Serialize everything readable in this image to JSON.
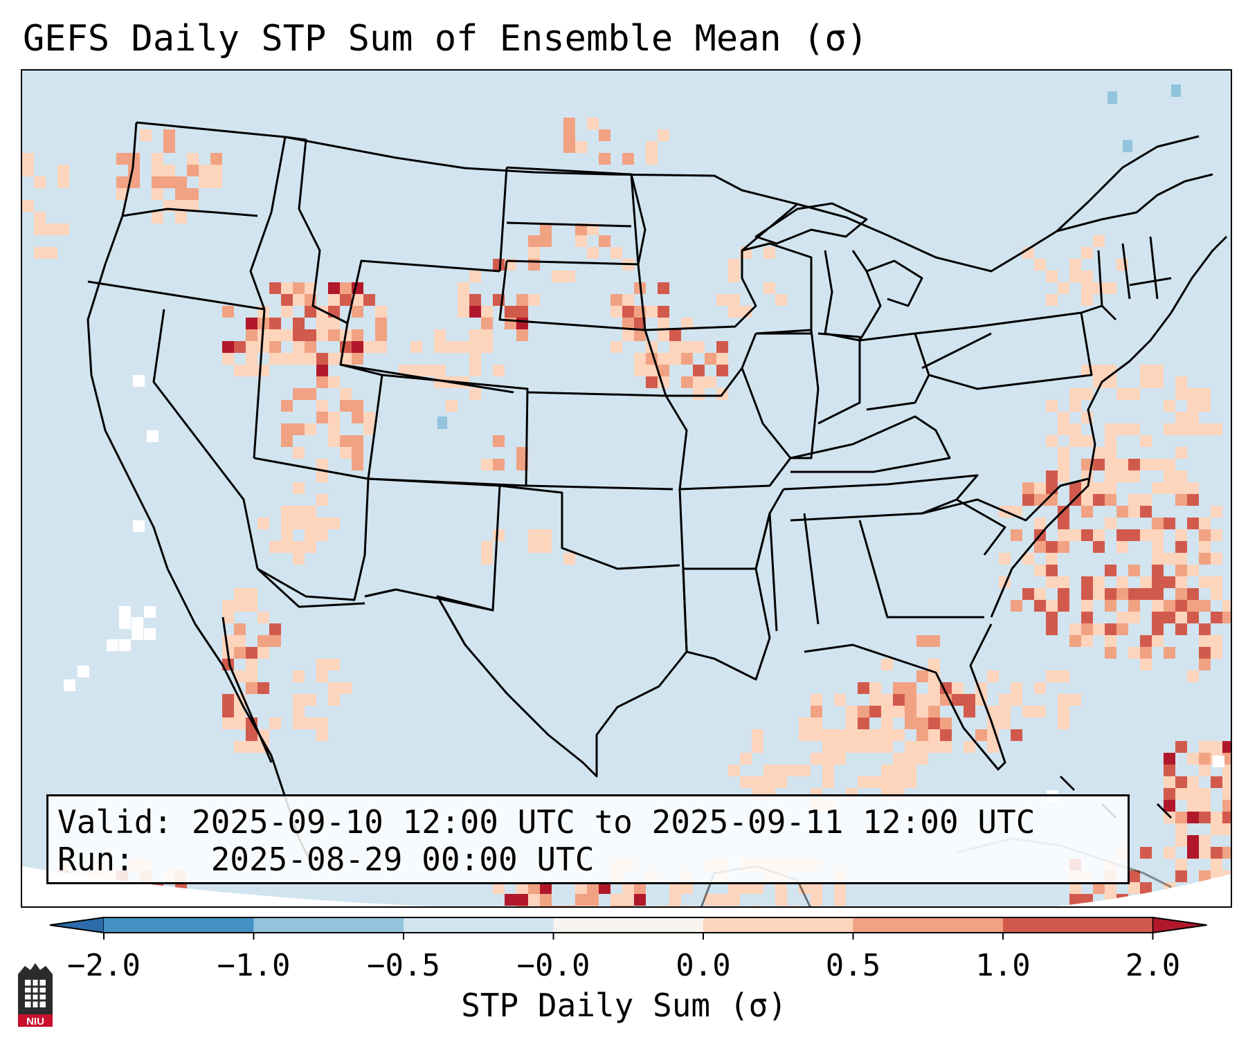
{
  "title": "GEFS Daily STP Sum of Ensemble Mean (σ)",
  "info": {
    "valid_label": "Valid:",
    "valid_value": "2025-09-10 12:00 UTC to 2025-09-11 12:00 UTC",
    "run_label": "Run:",
    "run_value": "2025-08-29 00:00 UTC"
  },
  "colorbar": {
    "label": "STP Daily Sum (σ)",
    "ticks": [
      "−2.0",
      "−1.0",
      "−0.5",
      "−0.0",
      "0.0",
      "0.5",
      "1.0",
      "2.0"
    ],
    "colors": [
      "#4290c4",
      "#92c4de",
      "#d2e4ef",
      "#f8f4f0",
      "#fdd4bc",
      "#f1a283",
      "#d25a4d"
    ],
    "under_color": "#2c6cab",
    "over_color": "#b2182b",
    "extend": "both"
  },
  "logo": {
    "text": "NIU",
    "icon": "university-tower-icon"
  }
}
